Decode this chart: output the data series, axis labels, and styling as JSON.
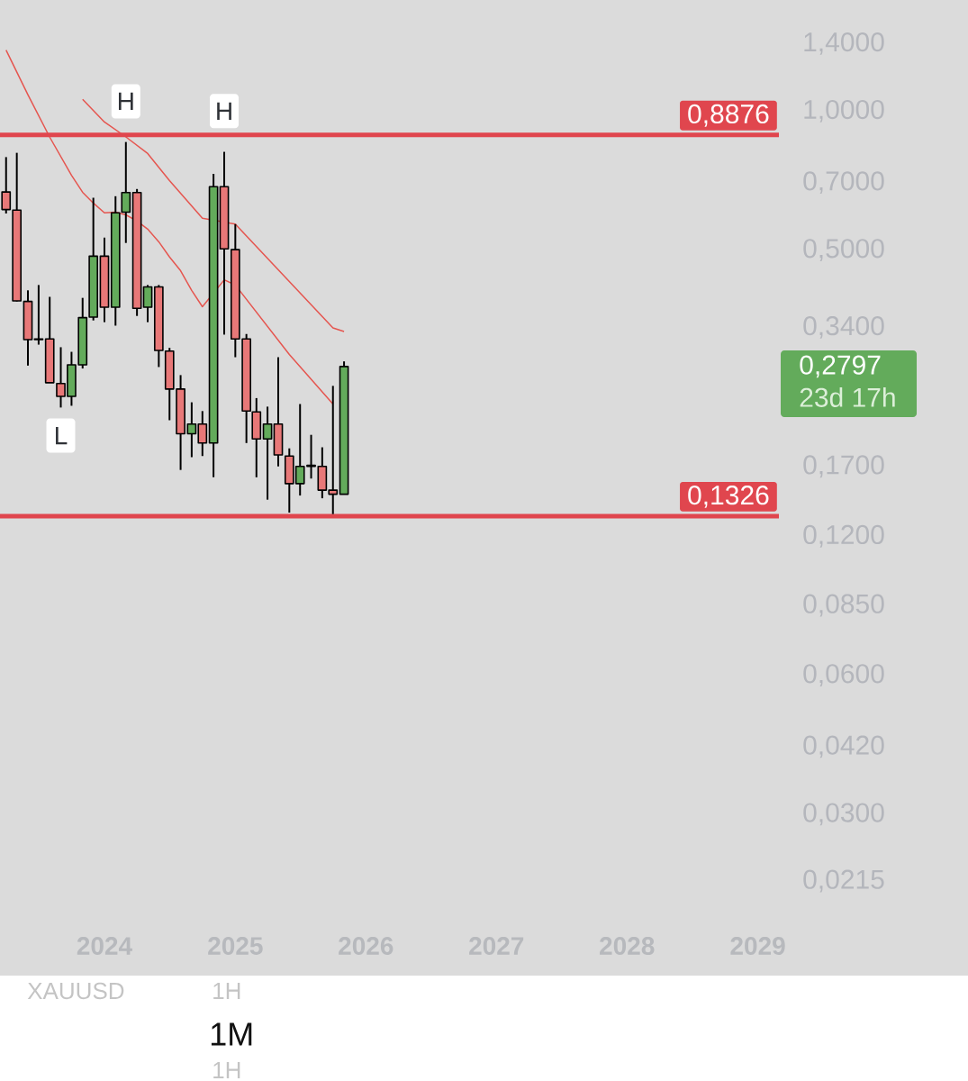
{
  "chart_data": {
    "type": "candlestick",
    "x": [
      "2023-04",
      "2023-05",
      "2023-06",
      "2023-07",
      "2023-08",
      "2023-09",
      "2023-10",
      "2023-11",
      "2023-12",
      "2024-01",
      "2024-02",
      "2024-03",
      "2024-04",
      "2024-05",
      "2024-06",
      "2024-07",
      "2024-08",
      "2024-09",
      "2024-10",
      "2024-11",
      "2024-12",
      "2025-01",
      "2025-02",
      "2025-03",
      "2025-04",
      "2025-05",
      "2025-06",
      "2025-07",
      "2025-08",
      "2025-09",
      "2025-10",
      "2025-11"
    ],
    "ohlc": [
      [
        0.668,
        0.795,
        0.6,
        0.612
      ],
      [
        0.61,
        0.812,
        0.387,
        0.388
      ],
      [
        0.387,
        0.409,
        0.281,
        0.32
      ],
      [
        0.321,
        0.42,
        0.312,
        0.32
      ],
      [
        0.321,
        0.396,
        0.258,
        0.258
      ],
      [
        0.257,
        0.308,
        0.228,
        0.241
      ],
      [
        0.241,
        0.301,
        0.23,
        0.282
      ],
      [
        0.282,
        0.394,
        0.277,
        0.357
      ],
      [
        0.358,
        0.649,
        0.352,
        0.485
      ],
      [
        0.485,
        0.532,
        0.349,
        0.376
      ],
      [
        0.376,
        0.654,
        0.343,
        0.602
      ],
      [
        0.604,
        0.857,
        0.518,
        0.666
      ],
      [
        0.666,
        0.678,
        0.36,
        0.374
      ],
      [
        0.376,
        0.42,
        0.349,
        0.416
      ],
      [
        0.416,
        0.42,
        0.279,
        0.303
      ],
      [
        0.302,
        0.307,
        0.214,
        0.25
      ],
      [
        0.25,
        0.268,
        0.167,
        0.2
      ],
      [
        0.2,
        0.234,
        0.178,
        0.21
      ],
      [
        0.21,
        0.224,
        0.179,
        0.191
      ],
      [
        0.191,
        0.731,
        0.161,
        0.686
      ],
      [
        0.686,
        0.816,
        0.328,
        0.503
      ],
      [
        0.501,
        0.569,
        0.293,
        0.321
      ],
      [
        0.321,
        0.329,
        0.191,
        0.224
      ],
      [
        0.223,
        0.239,
        0.161,
        0.195
      ],
      [
        0.195,
        0.229,
        0.144,
        0.21
      ],
      [
        0.21,
        0.293,
        0.17,
        0.18
      ],
      [
        0.179,
        0.186,
        0.135,
        0.156
      ],
      [
        0.156,
        0.232,
        0.147,
        0.17
      ],
      [
        0.17,
        0.199,
        0.16,
        0.171
      ],
      [
        0.17,
        0.187,
        0.145,
        0.151
      ],
      [
        0.151,
        0.254,
        0.134,
        0.148
      ],
      [
        0.148,
        0.287,
        0.148,
        0.2797
      ]
    ],
    "colors": [
      "#e87878",
      "#e87878",
      "#e87878",
      "#e87878",
      "#e87878",
      "#e87878",
      "#63ab5b",
      "#63ab5b",
      "#63ab5b",
      "#e87878",
      "#63ab5b",
      "#63ab5b",
      "#e87878",
      "#63ab5b",
      "#e87878",
      "#e87878",
      "#e87878",
      "#63ab5b",
      "#e87878",
      "#63ab5b",
      "#e87878",
      "#e87878",
      "#e87878",
      "#e87878",
      "#63ab5b",
      "#e87878",
      "#e87878",
      "#63ab5b",
      "#63ab5b",
      "#e87878",
      "#e87878",
      "#63ab5b"
    ],
    "series": [
      {
        "type": "line",
        "color": "#e5554f",
        "x": [
          "2023-11",
          "2024-01",
          "2024-03",
          "2024-05",
          "2024-07",
          "2024-10",
          "2025-01",
          "2025-10",
          "2025-11"
        ],
        "values": [
          1.06,
          0.947,
          0.879,
          0.809,
          0.707,
          0.586,
          0.569,
          0.339,
          0.333
        ]
      },
      {
        "type": "line",
        "color": "#e5554f",
        "x": [
          "2023-04",
          "2023-06",
          "2023-08",
          "2023-10",
          "2023-11",
          "2023-12",
          "2024-01",
          "2024-02",
          "2024-03",
          "2024-04",
          "2024-05",
          "2024-06",
          "2024-07",
          "2024-08",
          "2024-09",
          "2024-10",
          "2024-12",
          "2025-01",
          "2025-06",
          "2025-10"
        ],
        "values": [
          1.355,
          1.085,
          0.878,
          0.726,
          0.667,
          0.632,
          0.602,
          0.604,
          0.596,
          0.578,
          0.555,
          0.521,
          0.483,
          0.451,
          0.409,
          0.377,
          0.431,
          0.42,
          0.297,
          0.232
        ]
      }
    ],
    "xlim": [
      "2023-03-15",
      "2029-03-01"
    ],
    "xticks": [
      "2024",
      "2025",
      "2026",
      "2027",
      "2028",
      "2029"
    ],
    "ylim": [
      0.0215,
      1.74
    ],
    "log": true,
    "yticks": [
      {
        "value": 1.4,
        "label": "1,4000"
      },
      {
        "value": 1,
        "label": "1,0000"
      },
      {
        "value": 0.7,
        "label": "0,7000"
      },
      {
        "value": 0.5,
        "label": "0,5000"
      },
      {
        "value": 0.34,
        "label": "0,3400"
      },
      {
        "value": 0.17,
        "label": "0,1700"
      },
      {
        "value": 0.12,
        "label": "0,1200"
      },
      {
        "value": 0.085,
        "label": "0,0850"
      },
      {
        "value": 0.06,
        "label": "0,0600"
      },
      {
        "value": 0.042,
        "label": "0,0420"
      },
      {
        "value": 0.03,
        "label": "0,0300"
      },
      {
        "value": 0.0215,
        "label": "0,0215"
      }
    ],
    "ref_lines": [
      {
        "axis": "y",
        "value": 0.8876,
        "label": "0,8876",
        "color": "#e0464e"
      },
      {
        "axis": "y",
        "value": 0.1326,
        "label": "0,1326",
        "color": "#e0464e"
      }
    ],
    "annotations": [
      {
        "text": "H",
        "x": "2024-03",
        "y": 0.857
      },
      {
        "text": "H",
        "x": "2024-12",
        "y": 0.816
      },
      {
        "text": "L",
        "x": "2023-09",
        "y": 0.228
      },
      "0,2797",
      "23d 17h",
      "XAUUSD",
      "1H",
      "1M",
      "1H"
    ]
  }
}
